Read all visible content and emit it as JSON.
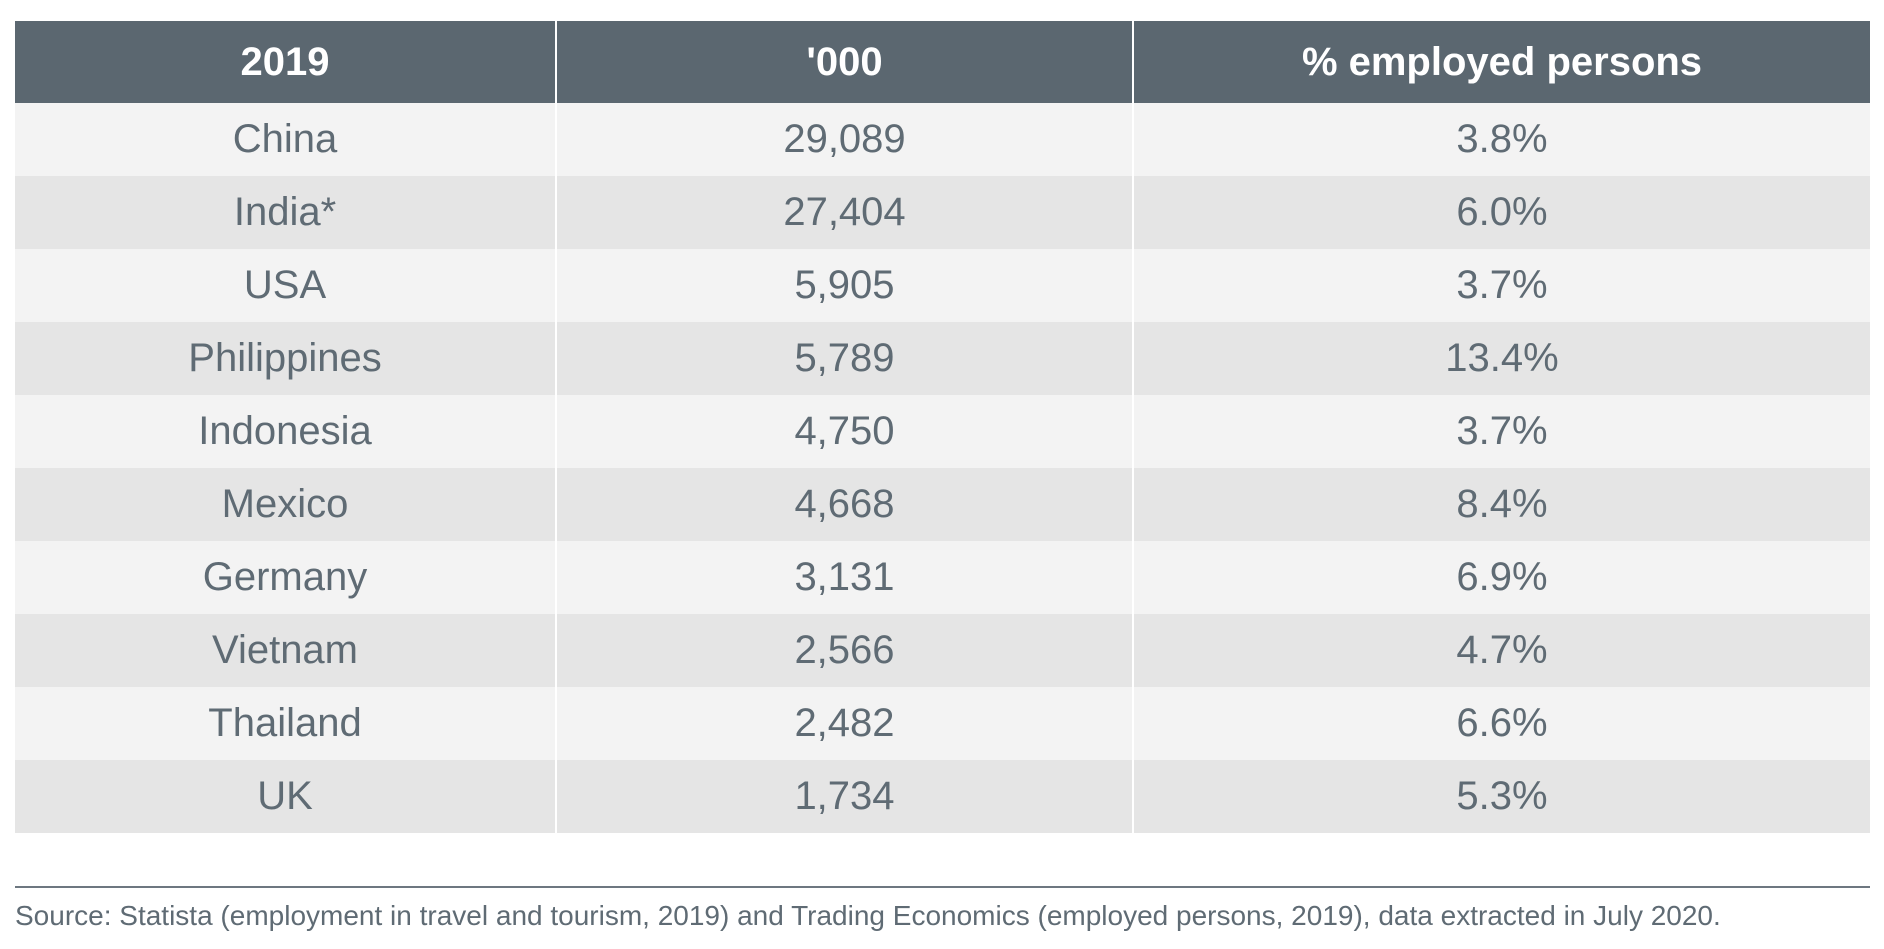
{
  "table": {
    "headers": [
      "2019",
      "'000",
      "% employed persons"
    ],
    "rows": [
      {
        "country": "China",
        "thousands": "29,089",
        "percent": "3.8%"
      },
      {
        "country": "India*",
        "thousands": "27,404",
        "percent": "6.0%"
      },
      {
        "country": "USA",
        "thousands": "5,905",
        "percent": "3.7%"
      },
      {
        "country": "Philippines",
        "thousands": "5,789",
        "percent": "13.4%"
      },
      {
        "country": "Indonesia",
        "thousands": "4,750",
        "percent": "3.7%"
      },
      {
        "country": "Mexico",
        "thousands": "4,668",
        "percent": "8.4%"
      },
      {
        "country": "Germany",
        "thousands": "3,131",
        "percent": "6.9%"
      },
      {
        "country": "Vietnam",
        "thousands": "2,566",
        "percent": "4.7%"
      },
      {
        "country": "Thailand",
        "thousands": "2,482",
        "percent": "6.6%"
      },
      {
        "country": "UK",
        "thousands": "1,734",
        "percent": "5.3%"
      }
    ]
  },
  "source_note": "Source: Statista (employment in travel and tourism, 2019) and Trading Economics (employed persons, 2019), data extracted in July 2020.",
  "colors": {
    "header_bg": "#5b6770",
    "row_light": "#f3f3f3",
    "row_dark": "#e5e5e5",
    "text": "#5f6b74"
  }
}
